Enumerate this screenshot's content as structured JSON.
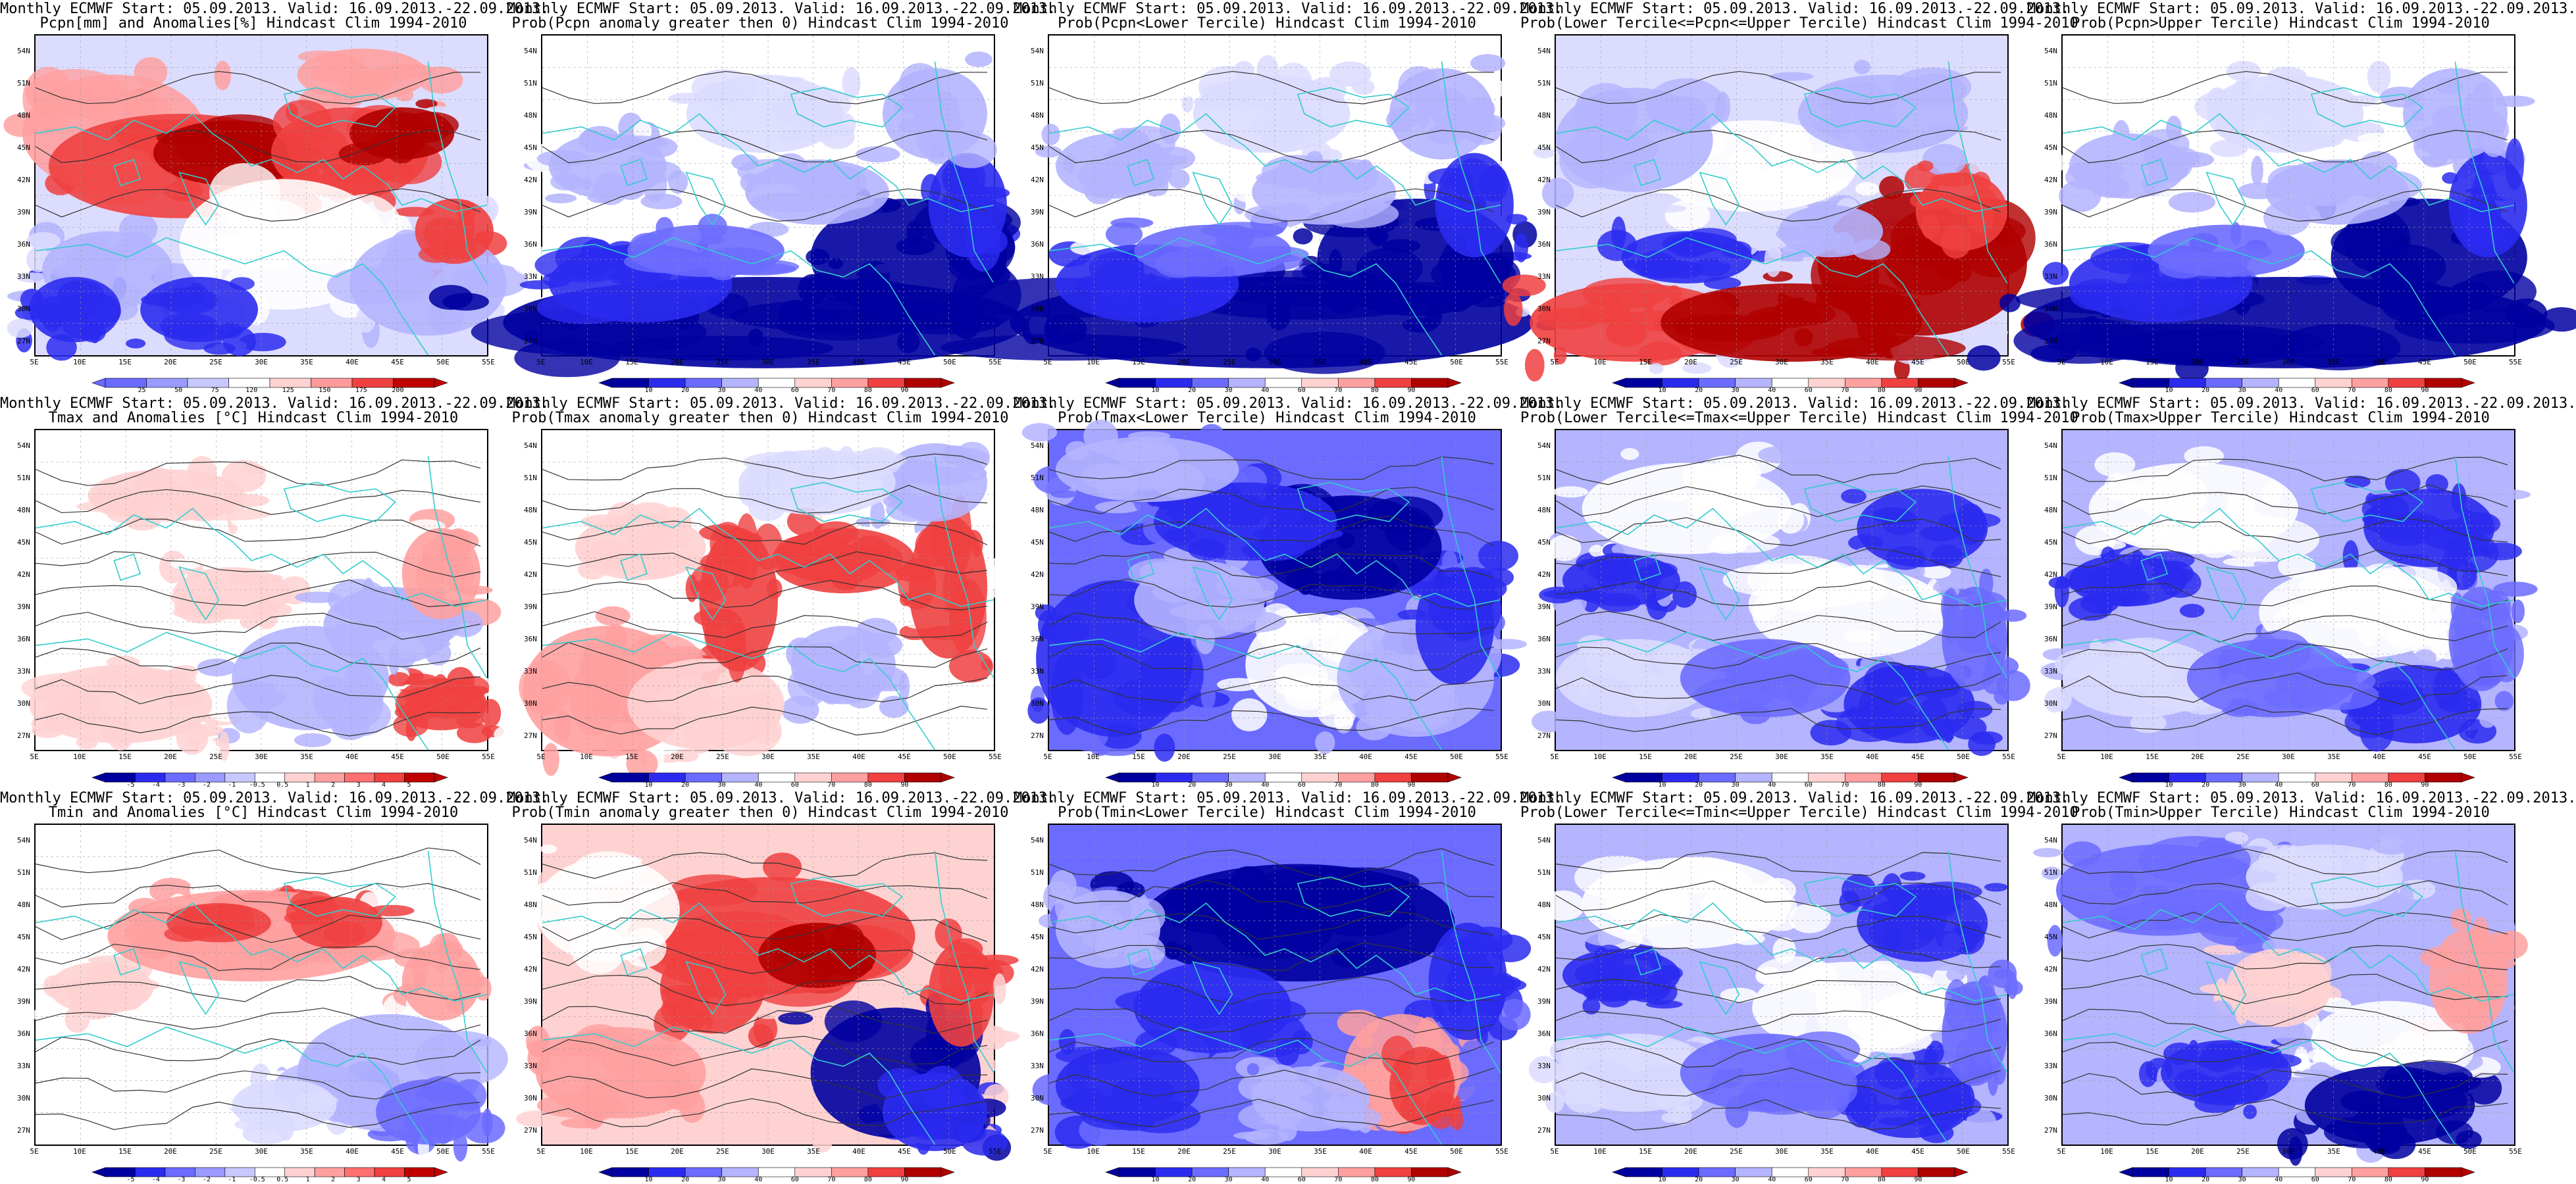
{
  "figure": {
    "panels": [
      {
        "id": "p11",
        "title1": "Monthly ECMWF Start: 05.09.2013. Valid: 16.09.2013.-22.09.2013.",
        "title2": "Pcpn[mm] and Anomalies[%] Hindcast Clim 1994-2010",
        "variable": "precipitation",
        "kind": "anomaly-pcpn",
        "colorbar": [
          "25",
          "50",
          "75",
          "120",
          "125",
          "150",
          "175",
          "200"
        ]
      },
      {
        "id": "p12",
        "title1": "Monthly ECMWF Start: 05.09.2013. Valid: 16.09.2013.-22.09.2013.",
        "title2": "Prob(Pcpn anomaly greater then 0) Hindcast Clim 1994-2010",
        "variable": "precipitation",
        "kind": "prob-low",
        "colorbar": [
          "10",
          "20",
          "30",
          "40",
          "60",
          "70",
          "80",
          "90"
        ]
      },
      {
        "id": "p13",
        "title1": "Monthly ECMWF Start: 05.09.2013. Valid: 16.09.2013.-22.09.2013.",
        "title2": "Prob(Pcpn<Lower Tercile) Hindcast Clim 1994-2010",
        "variable": "precipitation",
        "kind": "prob-low",
        "colorbar": [
          "10",
          "20",
          "30",
          "40",
          "60",
          "70",
          "80",
          "90"
        ]
      },
      {
        "id": "p14",
        "title1": "Monthly ECMWF Start: 05.09.2013. Valid: 16.09.2013.-22.09.2013.",
        "title2": "Prob(Lower Tercile<=Pcpn<=Upper Tercile) Hindcast Clim 1994-2010",
        "variable": "precipitation",
        "kind": "prob-red",
        "colorbar": [
          "10",
          "20",
          "30",
          "40",
          "60",
          "70",
          "80",
          "90"
        ]
      },
      {
        "id": "p15",
        "title1": "Monthly ECMWF Start: 05.09.2013. Valid: 16.09.2013.-22.09.2013.",
        "title2": "Prob(Pcpn>Upper Tercile) Hindcast Clim 1994-2010",
        "variable": "precipitation",
        "kind": "prob-low",
        "colorbar": [
          "10",
          "20",
          "30",
          "40",
          "60",
          "70",
          "80",
          "90"
        ]
      },
      {
        "id": "p21",
        "title1": "Monthly ECMWF Start: 05.09.2013. Valid: 16.09.2013.-22.09.2013.",
        "title2": "Tmax and Anomalies [°C] Hindcast Clim 1994-2010",
        "variable": "tmax",
        "kind": "anomaly-light",
        "colorbar": [
          "-5",
          "-4",
          "-3",
          "-2",
          "-1",
          "-0.5",
          "0.5",
          "1",
          "2",
          "3",
          "4",
          "5"
        ]
      },
      {
        "id": "p22",
        "title1": "Monthly ECMWF Start: 05.09.2013. Valid: 16.09.2013.-22.09.2013.",
        "title2": "Prob(Tmax anomaly greater then 0) Hindcast Clim 1994-2010",
        "variable": "tmax",
        "kind": "prob-warm",
        "colorbar": [
          "10",
          "20",
          "30",
          "40",
          "60",
          "70",
          "80",
          "90"
        ]
      },
      {
        "id": "p23",
        "title1": "Monthly ECMWF Start: 05.09.2013. Valid: 16.09.2013.-22.09.2013.",
        "title2": "Prob(Tmax<Lower Tercile) Hindcast Clim 1994-2010",
        "variable": "tmax",
        "kind": "prob-cold",
        "colorbar": [
          "10",
          "20",
          "30",
          "40",
          "60",
          "70",
          "80",
          "90"
        ]
      },
      {
        "id": "p24",
        "title1": "Monthly ECMWF Start: 05.09.2013. Valid: 16.09.2013.-22.09.2013.",
        "title2": "Prob(Lower Tercile<=Tmax<=Upper Tercile) Hindcast Clim 1994-2010",
        "variable": "tmax",
        "kind": "prob-mid",
        "colorbar": [
          "10",
          "20",
          "30",
          "40",
          "60",
          "70",
          "80",
          "90"
        ]
      },
      {
        "id": "p25",
        "title1": "Monthly ECMWF Start: 05.09.2013. Valid: 16.09.2013.-22.09.2013.",
        "title2": "Prob(Tmax>Upper Tercile) Hindcast Clim 1994-2010",
        "variable": "tmax",
        "kind": "prob-mid",
        "colorbar": [
          "10",
          "20",
          "30",
          "40",
          "60",
          "70",
          "80",
          "90"
        ]
      },
      {
        "id": "p31",
        "title1": "Monthly ECMWF Start: 05.09.2013. Valid: 16.09.2013.-22.09.2013.",
        "title2": "Tmin and Anomalies [°C] Hindcast Clim 1994-2010",
        "variable": "tmin",
        "kind": "anomaly-tmin",
        "colorbar": [
          "-5",
          "-4",
          "-3",
          "-2",
          "-1",
          "-0.5",
          "0.5",
          "1",
          "2",
          "3",
          "4",
          "5"
        ]
      },
      {
        "id": "p32",
        "title1": "Monthly ECMWF Start: 05.09.2013. Valid: 16.09.2013.-22.09.2013.",
        "title2": "Prob(Tmin anomaly greater then 0) Hindcast Clim 1994-2010",
        "variable": "tmin",
        "kind": "prob-warm2",
        "colorbar": [
          "10",
          "20",
          "30",
          "40",
          "60",
          "70",
          "80",
          "90"
        ]
      },
      {
        "id": "p33",
        "title1": "Monthly ECMWF Start: 05.09.2013. Valid: 16.09.2013.-22.09.2013.",
        "title2": "Prob(Tmin<Lower Tercile) Hindcast Clim 1994-2010",
        "variable": "tmin",
        "kind": "prob-cold2",
        "colorbar": [
          "10",
          "20",
          "30",
          "40",
          "60",
          "70",
          "80",
          "90"
        ]
      },
      {
        "id": "p34",
        "title1": "Monthly ECMWF Start: 05.09.2013. Valid: 16.09.2013.-22.09.2013.",
        "title2": "Prob(Lower Tercile<=Tmin<=Upper Tercile) Hindcast Clim 1994-2010",
        "variable": "tmin",
        "kind": "prob-mid",
        "colorbar": [
          "10",
          "20",
          "30",
          "40",
          "60",
          "70",
          "80",
          "90"
        ]
      },
      {
        "id": "p35",
        "title1": "Monthly ECMWF Start: 05.09.2013. Valid: 16.09.2013.-22.09.2013.",
        "title2": "Prob(Tmin>Upper Tercile) Hindcast Clim 1994-2010",
        "variable": "tmin",
        "kind": "prob-mid2",
        "colorbar": [
          "10",
          "20",
          "30",
          "40",
          "60",
          "70",
          "80",
          "90"
        ]
      }
    ],
    "lat_labels": [
      "54N",
      "51N",
      "48N",
      "45N",
      "42N",
      "39N",
      "36N",
      "33N",
      "30N",
      "27N"
    ],
    "lon_labels": [
      "5E",
      "10E",
      "15E",
      "20E",
      "25E",
      "30E",
      "35E",
      "40E",
      "45E",
      "50E",
      "55E"
    ],
    "colors": {
      "coast": "#33cccc",
      "contour": "#333333",
      "deep_blue": "#0000a0",
      "blue": "#2b2bf0",
      "mid_blue": "#6b6bff",
      "light_blue": "#b4b4ff",
      "pale_blue": "#dcdcff",
      "white": "#ffffff",
      "pale_red": "#ffd2d2",
      "light_red": "#ffa0a0",
      "red": "#f04040",
      "deep_red": "#b00000"
    }
  }
}
